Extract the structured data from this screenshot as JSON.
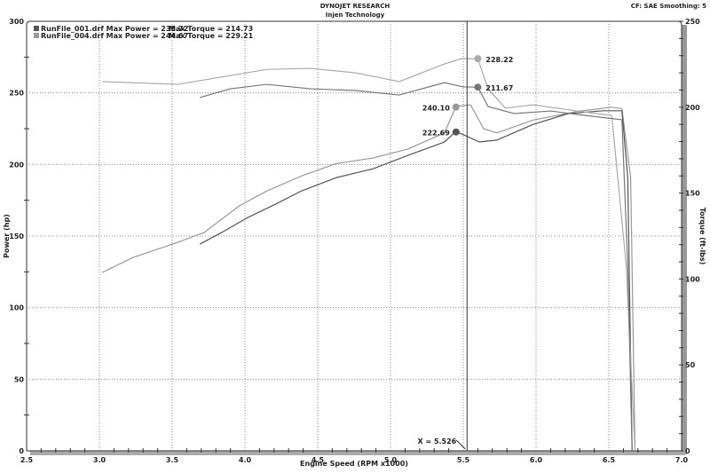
{
  "header": {
    "title": "DYNOJET RESEARCH",
    "subtitle": "Injen Technology",
    "cf": "CF: SAE  Smoothing: 5"
  },
  "chart_data": {
    "type": "line",
    "xlabel": "Engine Speed (RPM x1000)",
    "ylabel": "Power (hp)",
    "y2label": "Torque (ft-lbs)",
    "xlim": [
      2.5,
      7.0
    ],
    "ylim": [
      0,
      300
    ],
    "y2lim": [
      0,
      250
    ],
    "xticks": [
      "2.5",
      "3.0",
      "3.5",
      "4.0",
      "4.5",
      "5.0",
      "5.5",
      "6.0",
      "6.5",
      "7.0"
    ],
    "yticks": [
      "0",
      "50",
      "100",
      "150",
      "200",
      "250",
      "300"
    ],
    "y2ticks": [
      "0",
      "50",
      "100",
      "150",
      "200",
      "250"
    ],
    "grid": true,
    "legend_position": "top-left",
    "legend": [
      {
        "text": "RunFile_001.drf Max Power = 238.72",
        "torque_text": "Max Torque = 214.73",
        "color": "#555555"
      },
      {
        "text": "RunFile_004.drf Max Power = 244.67",
        "torque_text": "Max Torque = 229.21",
        "color": "#999999"
      }
    ],
    "cursor": {
      "x": 5.526,
      "label": "X = 5.526"
    },
    "series": [
      {
        "name": "RunFile_004.drf",
        "axis": "power",
        "color": "#999999",
        "x": [
          3.02,
          3.23,
          3.54,
          3.72,
          3.96,
          4.15,
          4.39,
          4.63,
          4.88,
          5.12,
          5.37,
          5.45,
          5.55,
          5.64,
          5.73,
          5.98,
          6.28,
          6.52,
          6.59,
          6.65,
          6.68
        ],
        "y": [
          124.6,
          135,
          145.7,
          152.5,
          171,
          181.5,
          192,
          200.7,
          204.5,
          210.8,
          222,
          240.5,
          241.7,
          225,
          222,
          231,
          237,
          240,
          239,
          191,
          0
        ]
      },
      {
        "name": "RunFile_001.drf",
        "axis": "power",
        "color": "#555555",
        "x": [
          3.69,
          3.84,
          4.02,
          4.21,
          4.39,
          4.63,
          4.88,
          5.12,
          5.37,
          5.45,
          5.61,
          5.73,
          5.98,
          6.22,
          6.46,
          6.59,
          6.63,
          6.66
        ],
        "y": [
          144.4,
          152.5,
          163,
          172.3,
          181.6,
          190.9,
          197,
          206.4,
          215.7,
          223.1,
          215.7,
          217,
          228,
          235.5,
          237.5,
          237.5,
          191,
          0
        ]
      },
      {
        "name": "RunFile_004.drf",
        "axis": "torque",
        "color": "#aaaaaa",
        "x": [
          3.02,
          3.54,
          4.15,
          4.45,
          4.76,
          5.06,
          5.37,
          5.49,
          5.6,
          5.67,
          5.79,
          5.98,
          6.28,
          6.52,
          6.62,
          6.68
        ],
        "y": [
          214.9,
          213.3,
          222,
          222.6,
          220,
          214.9,
          225.2,
          228.3,
          228.2,
          210.7,
          199.4,
          201.4,
          197.8,
          195.2,
          107.4,
          0
        ]
      },
      {
        "name": "RunFile_001.drf",
        "axis": "torque",
        "color": "#777777",
        "x": [
          3.69,
          3.9,
          4.15,
          4.45,
          4.76,
          5.06,
          5.37,
          5.5,
          5.6,
          5.67,
          5.85,
          6.1,
          6.34,
          6.59,
          6.63,
          6.66
        ],
        "y": [
          205.6,
          210.7,
          213.3,
          210.7,
          209.7,
          207.1,
          214.3,
          211.8,
          211.7,
          200.4,
          196.3,
          197.8,
          195.2,
          192.7,
          107.4,
          0
        ]
      }
    ],
    "markers": [
      {
        "label": "228.22",
        "x": 5.6,
        "y": 228.22,
        "axis": "torque",
        "color": "#aaaaaa",
        "side": "right"
      },
      {
        "label": "211.67",
        "x": 5.6,
        "y": 211.67,
        "axis": "torque",
        "color": "#777777",
        "side": "right"
      },
      {
        "label": "240.10",
        "x": 5.45,
        "y": 240.1,
        "axis": "power",
        "color": "#999999",
        "side": "left"
      },
      {
        "label": "222.69",
        "x": 5.45,
        "y": 222.69,
        "axis": "power",
        "color": "#555555",
        "side": "left"
      }
    ]
  }
}
